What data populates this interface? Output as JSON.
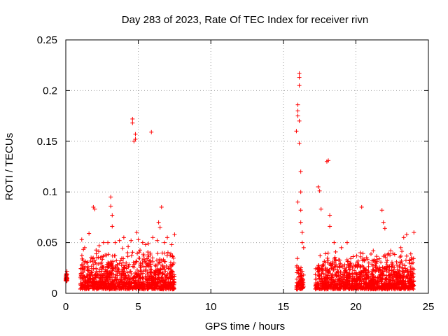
{
  "chart_data": {
    "type": "scatter",
    "title": "Day 283 of 2023, Rate Of TEC Index for receiver rivn",
    "xlabel": "GPS time / hours",
    "ylabel": "ROTI / TECUs",
    "xlim": [
      0,
      25
    ],
    "ylim": [
      0,
      0.25
    ],
    "xticks": [
      0,
      5,
      10,
      15,
      20,
      25
    ],
    "xtick_labels": [
      "0",
      "5",
      "10",
      "15",
      "20",
      "25"
    ],
    "yticks": [
      0,
      0.05,
      0.1,
      0.15,
      0.2,
      0.25
    ],
    "ytick_labels": [
      "0",
      "0.05",
      "0.1",
      "0.15",
      "0.2",
      "0.25"
    ],
    "grid": true,
    "legend": "none",
    "marker": "plus",
    "color": "#ff0000",
    "dense_clusters": [
      {
        "x_range": [
          0.0,
          0.1
        ],
        "y_range": [
          0.012,
          0.025
        ]
      },
      {
        "x_range": [
          1.0,
          7.5
        ],
        "y_range": [
          0.004,
          0.045
        ]
      },
      {
        "x_range": [
          15.9,
          16.4
        ],
        "y_range": [
          0.004,
          0.04
        ]
      },
      {
        "x_range": [
          17.2,
          24.0
        ],
        "y_range": [
          0.004,
          0.045
        ]
      }
    ],
    "x": [
      1.1,
      1.3,
      1.6,
      1.9,
      2.0,
      2.3,
      2.6,
      2.9,
      3.1,
      3.1,
      3.2,
      3.2,
      3.4,
      3.7,
      4.0,
      4.3,
      4.5,
      4.6,
      4.6,
      4.7,
      4.8,
      4.8,
      4.9,
      5.0,
      5.3,
      5.5,
      5.7,
      5.9,
      6.0,
      6.3,
      6.4,
      6.5,
      6.6,
      6.8,
      7.0,
      7.3,
      7.5,
      15.9,
      16.0,
      16.0,
      16.0,
      16.0,
      16.1,
      16.1,
      16.1,
      16.1,
      16.1,
      16.2,
      16.2,
      16.2,
      16.2,
      16.3,
      16.3,
      16.4,
      17.4,
      17.5,
      17.6,
      18.0,
      18.1,
      18.2,
      18.2,
      18.5,
      19.0,
      19.4,
      20.3,
      20.4,
      21.2,
      21.8,
      21.9,
      22.0,
      22.4,
      23.1,
      23.3,
      23.5,
      24.0
    ],
    "y": [
      0.053,
      0.045,
      0.059,
      0.085,
      0.083,
      0.047,
      0.05,
      0.05,
      0.095,
      0.086,
      0.077,
      0.066,
      0.05,
      0.052,
      0.055,
      0.046,
      0.052,
      0.172,
      0.168,
      0.15,
      0.157,
      0.152,
      0.06,
      0.053,
      0.05,
      0.048,
      0.049,
      0.159,
      0.055,
      0.052,
      0.07,
      0.065,
      0.085,
      0.05,
      0.055,
      0.048,
      0.058,
      0.16,
      0.18,
      0.186,
      0.175,
      0.09,
      0.217,
      0.213,
      0.205,
      0.17,
      0.148,
      0.12,
      0.1,
      0.082,
      0.07,
      0.06,
      0.05,
      0.045,
      0.105,
      0.101,
      0.083,
      0.13,
      0.131,
      0.077,
      0.066,
      0.05,
      0.045,
      0.05,
      0.04,
      0.085,
      0.042,
      0.082,
      0.07,
      0.064,
      0.042,
      0.045,
      0.055,
      0.058,
      0.06
    ]
  }
}
